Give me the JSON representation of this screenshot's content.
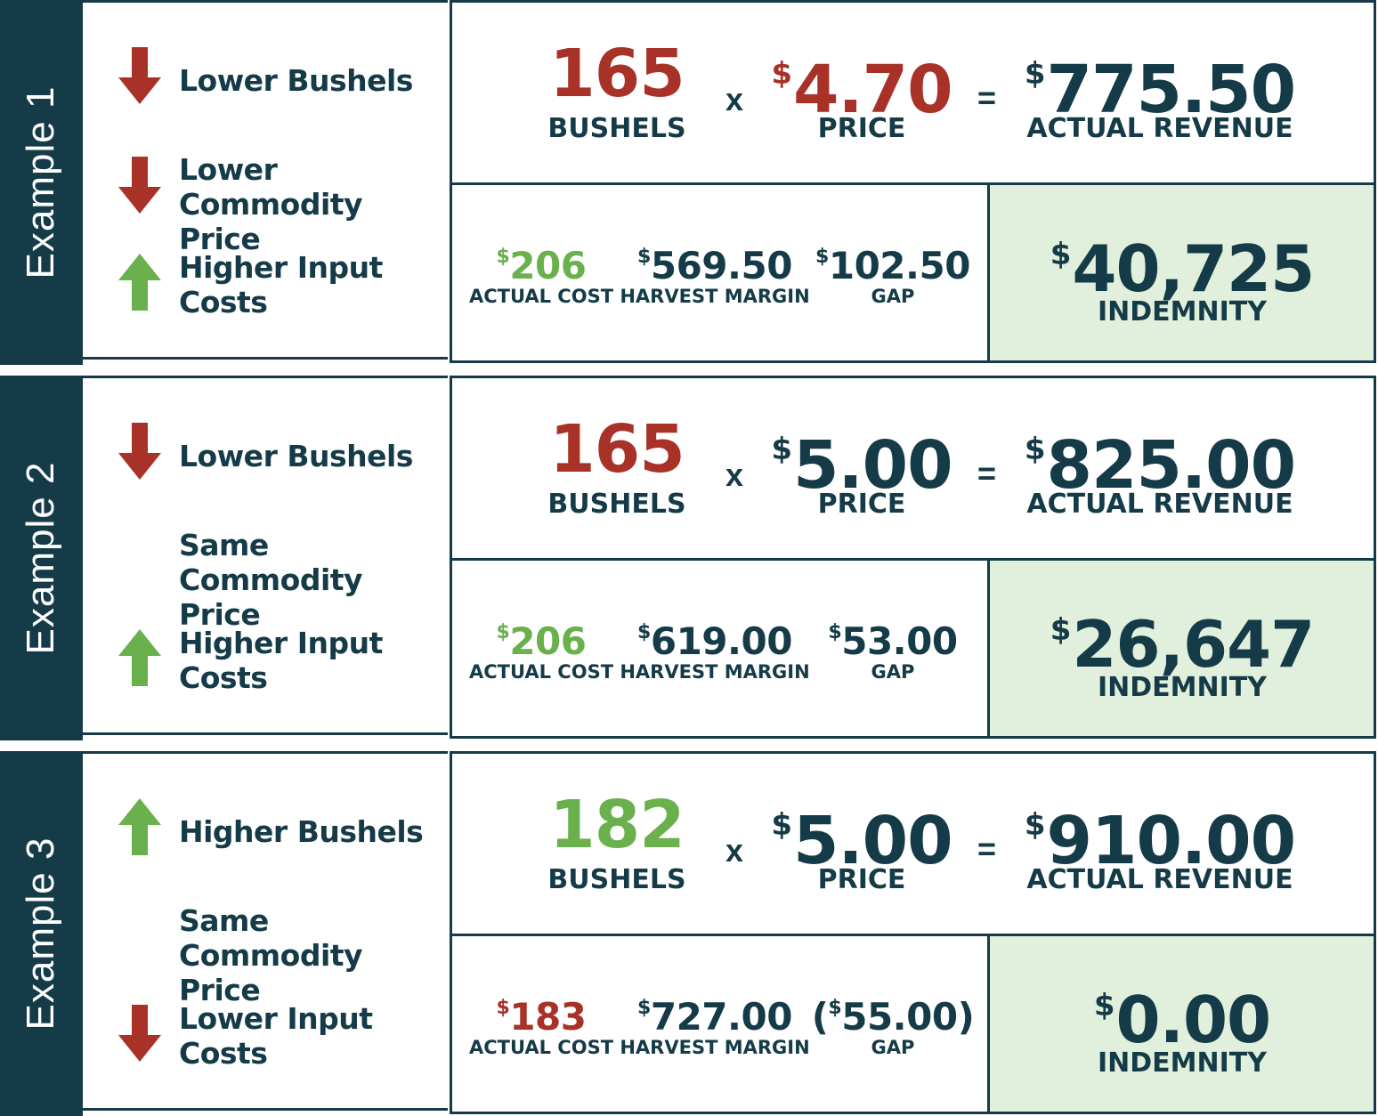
{
  "colors": {
    "navy": "#143b47",
    "red": "#a83228",
    "green": "#6ab04c",
    "indemnity_bg": "#e1f0dc"
  },
  "examples": [
    {
      "label": "Example 1",
      "factors": [
        {
          "direction": "down",
          "icon": "down-arrow-icon",
          "text": "Lower Bushels"
        },
        {
          "direction": "down",
          "icon": "down-arrow-icon",
          "text": "Lower Commodity Price"
        },
        {
          "direction": "up",
          "icon": "up-arrow-icon",
          "text": "Higher Input Costs"
        }
      ],
      "bushels": {
        "value": "165",
        "label": "BUSHELS",
        "color": "red"
      },
      "times": "x",
      "price": {
        "currency": "$",
        "value": "4.70",
        "label": "PRICE",
        "color": "red"
      },
      "equals": "=",
      "revenue": {
        "currency": "$",
        "value": "775.50",
        "label": "ACTUAL REVENUE"
      },
      "actual_cost": {
        "currency": "$",
        "value": "206",
        "label": "ACTUAL COST",
        "color": "green"
      },
      "harvest_margin": {
        "currency": "$",
        "value": "569.50",
        "label": "HARVEST MARGIN"
      },
      "gap": {
        "prefix": "",
        "currency": "$",
        "value": "102.50",
        "suffix": "",
        "label": "GAP"
      },
      "indemnity": {
        "currency": "$",
        "value": "40,725",
        "label": "INDEMNITY"
      }
    },
    {
      "label": "Example 2",
      "factors": [
        {
          "direction": "down",
          "icon": "down-arrow-icon",
          "text": "Lower Bushels"
        },
        {
          "direction": "none",
          "icon": "",
          "text": "Same Commodity Price"
        },
        {
          "direction": "up",
          "icon": "up-arrow-icon",
          "text": "Higher Input Costs"
        }
      ],
      "bushels": {
        "value": "165",
        "label": "BUSHELS",
        "color": "red"
      },
      "times": "x",
      "price": {
        "currency": "$",
        "value": "5.00",
        "label": "PRICE",
        "color": "navy"
      },
      "equals": "=",
      "revenue": {
        "currency": "$",
        "value": "825.00",
        "label": "ACTUAL REVENUE"
      },
      "actual_cost": {
        "currency": "$",
        "value": "206",
        "label": "ACTUAL COST",
        "color": "green"
      },
      "harvest_margin": {
        "currency": "$",
        "value": "619.00",
        "label": "HARVEST MARGIN"
      },
      "gap": {
        "prefix": "",
        "currency": "$",
        "value": "53.00",
        "suffix": "",
        "label": "GAP"
      },
      "indemnity": {
        "currency": "$",
        "value": "26,647",
        "label": "INDEMNITY"
      }
    },
    {
      "label": "Example 3",
      "factors": [
        {
          "direction": "up",
          "icon": "up-arrow-icon",
          "text": "Higher Bushels"
        },
        {
          "direction": "none",
          "icon": "",
          "text": "Same Commodity Price"
        },
        {
          "direction": "down",
          "icon": "down-arrow-icon",
          "text": "Lower Input Costs"
        }
      ],
      "bushels": {
        "value": "182",
        "label": "BUSHELS",
        "color": "green"
      },
      "times": "x",
      "price": {
        "currency": "$",
        "value": "5.00",
        "label": "PRICE",
        "color": "navy"
      },
      "equals": "=",
      "revenue": {
        "currency": "$",
        "value": "910.00",
        "label": "ACTUAL REVENUE"
      },
      "actual_cost": {
        "currency": "$",
        "value": "183",
        "label": "ACTUAL COST",
        "color": "red"
      },
      "harvest_margin": {
        "currency": "$",
        "value": "727.00",
        "label": "HARVEST MARGIN"
      },
      "gap": {
        "prefix": "(",
        "currency": "$",
        "value": "55.00",
        "suffix": ")",
        "label": "GAP"
      },
      "indemnity": {
        "currency": "$",
        "value": "0.00",
        "label": "INDEMNITY"
      }
    }
  ]
}
